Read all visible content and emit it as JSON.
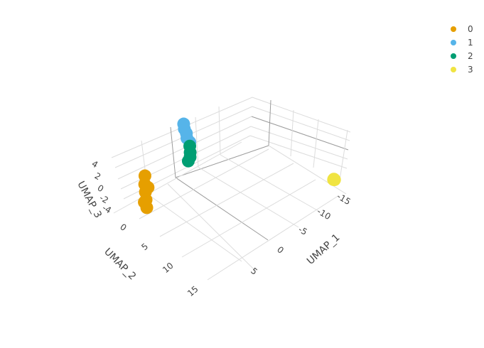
{
  "chart_data": {
    "type": "scatter3d",
    "axes": {
      "x": {
        "label": "UMAP_1",
        "ticks": [
          "-15",
          "-10",
          "-5",
          "0",
          "5"
        ]
      },
      "y": {
        "label": "UMAP_2",
        "ticks": [
          "0",
          "5",
          "10",
          "15"
        ]
      },
      "z": {
        "label": "UMAP_3",
        "ticks": [
          "4",
          "2",
          "0",
          "-2",
          "-4"
        ]
      }
    },
    "grid": true,
    "legend": "top-right",
    "series": [
      {
        "name": "0",
        "color": "#E69F00",
        "points": [
          [
            7.2,
            -19.6,
            2.2
          ],
          [
            7.8,
            -19.4,
            1.2
          ],
          [
            8.2,
            -19.2,
            0.2
          ],
          [
            8.6,
            -19.0,
            -0.8
          ],
          [
            9.0,
            -18.8,
            -1.8
          ],
          [
            8.8,
            -19.4,
            -1.4
          ],
          [
            7.6,
            -19.0,
            0.8
          ]
        ]
      },
      {
        "name": "1",
        "color": "#56B4E9",
        "points": [
          [
            -2.6,
            -19.9,
            5.0
          ],
          [
            -2.4,
            -19.8,
            4.3
          ],
          [
            -2.6,
            -19.9,
            3.3
          ],
          [
            -2.5,
            -20.0,
            2.4
          ],
          [
            -2.7,
            -19.8,
            1.7
          ]
        ]
      },
      {
        "name": "2",
        "color": "#009E73",
        "points": [
          [
            -2.6,
            -20.0,
            0.9
          ],
          [
            -2.2,
            -20.2,
            -1.0
          ],
          [
            -1.8,
            -20.4,
            -1.6
          ],
          [
            -2.4,
            -20.1,
            -0.2
          ]
        ]
      },
      {
        "name": "3",
        "color": "#F0E442",
        "points": [
          [
            -16.0,
            -2.0,
            0.1
          ],
          [
            -16.2,
            -2.2,
            -0.3
          ],
          [
            -15.8,
            -1.8,
            0.3
          ]
        ]
      }
    ]
  }
}
